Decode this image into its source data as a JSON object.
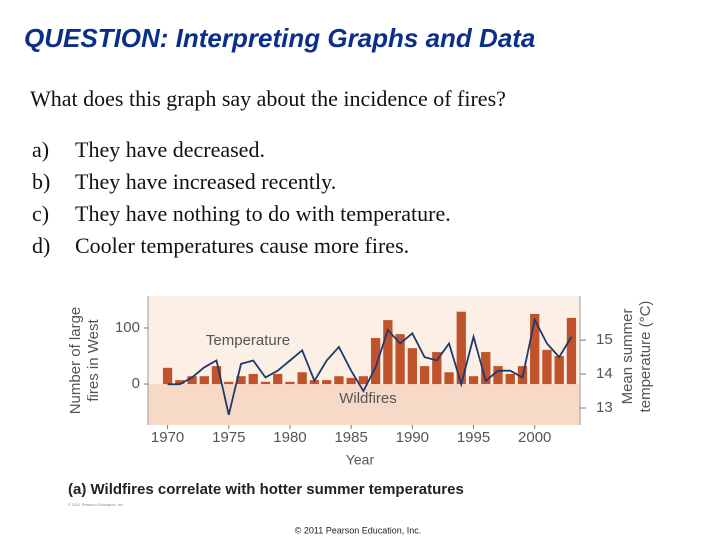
{
  "slide": {
    "title": "QUESTION: Interpreting Graphs and Data",
    "question": "What does this graph say about the incidence of fires?",
    "options": [
      {
        "letter": "a)",
        "text": "They have decreased."
      },
      {
        "letter": "b)",
        "text": "They have increased recently."
      },
      {
        "letter": "c)",
        "text": "They have nothing to do with temperature."
      },
      {
        "letter": "d)",
        "text": "Cooler temperatures cause more fires."
      }
    ],
    "footer": "© 2011 Pearson Education, Inc."
  },
  "chart_data": {
    "type": "bar",
    "caption": "(a) Wildfires correlate with hotter summer temperatures",
    "credit": "© 2011 Pearson Education, Inc.",
    "xlabel": "Year",
    "ylabel": [
      "Number of large",
      "fires in West"
    ],
    "y2label": [
      "Mean summer",
      "temperature (°C)"
    ],
    "annotations": [
      "Temperature",
      "Wildfires"
    ],
    "x": [
      1970,
      1971,
      1972,
      1973,
      1974,
      1975,
      1976,
      1977,
      1978,
      1979,
      1980,
      1981,
      1982,
      1983,
      1984,
      1985,
      1986,
      1987,
      1988,
      1989,
      1990,
      1991,
      1992,
      1993,
      1994,
      1995,
      1996,
      1997,
      1998,
      1999,
      2000,
      2001,
      2002,
      2003
    ],
    "series": [
      {
        "name": "Wildfires",
        "type": "bar",
        "axis": "y",
        "color": "#c0532b",
        "values": [
          29,
          7,
          14,
          14,
          32,
          4,
          14,
          18,
          4,
          18,
          4,
          21,
          7,
          7,
          14,
          11,
          14,
          82,
          114,
          89,
          64,
          32,
          57,
          21,
          129,
          14,
          57,
          32,
          18,
          32,
          125,
          61,
          50,
          118
        ]
      },
      {
        "name": "Temperature",
        "type": "line",
        "axis": "y2",
        "color": "#1f3a6e",
        "values": [
          13.7,
          13.7,
          13.9,
          14.2,
          14.4,
          12.8,
          14.3,
          14.4,
          13.9,
          14.1,
          14.4,
          14.7,
          13.8,
          14.4,
          14.8,
          14.1,
          13.5,
          14.2,
          15.3,
          14.9,
          15.2,
          14.5,
          14.4,
          14.9,
          13.7,
          15.1,
          13.8,
          14.1,
          14.1,
          13.9,
          15.6,
          14.9,
          14.5,
          15.1
        ]
      }
    ],
    "xlim": [
      1968.4,
      2003.7
    ],
    "xticks": [
      1970,
      1975,
      1980,
      1985,
      1990,
      1995,
      2000
    ],
    "ylim": [
      -73,
      157
    ],
    "yticks": [
      0,
      100
    ],
    "y2lim": [
      12.5,
      16.3
    ],
    "y2ticks": [
      13,
      14,
      15
    ]
  }
}
